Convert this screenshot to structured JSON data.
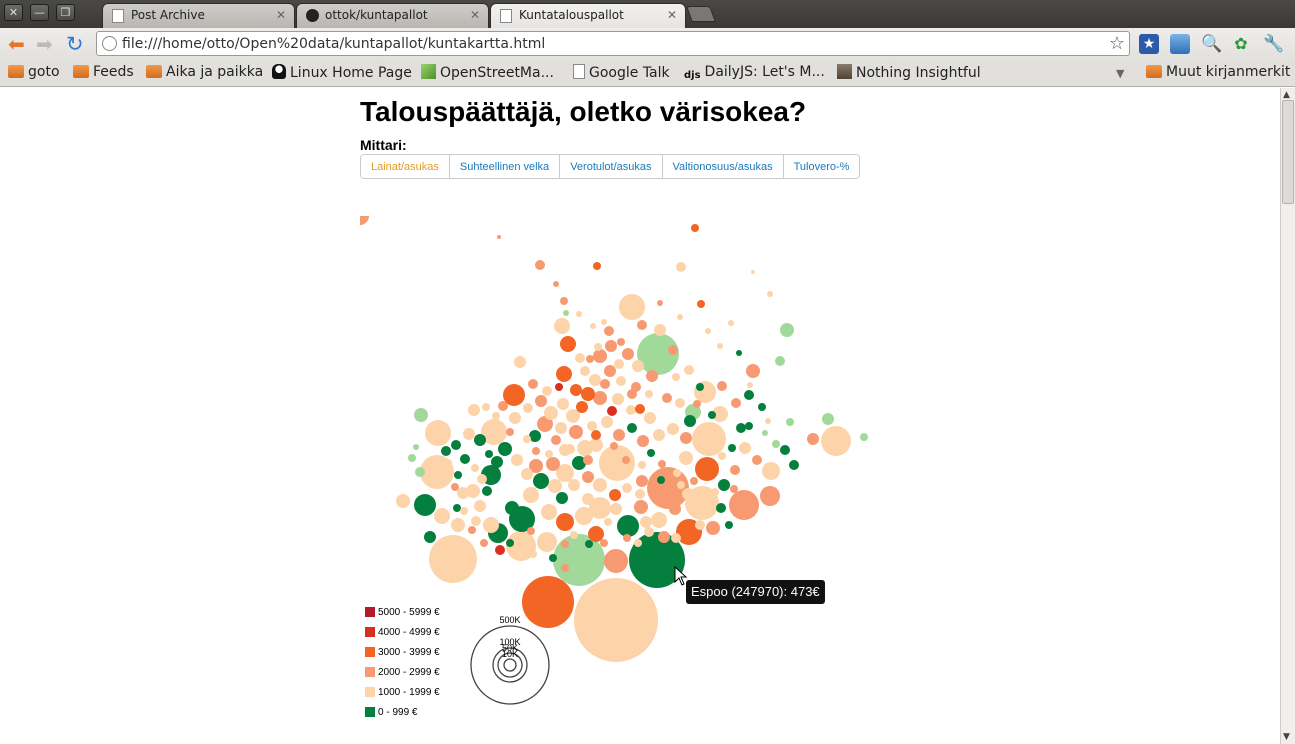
{
  "window": {
    "tabs": [
      {
        "label": "Post Archive",
        "active": false
      },
      {
        "label": "ottok/kuntapallot",
        "active": false
      },
      {
        "label": "Kuntatalouspallot",
        "active": true
      }
    ]
  },
  "toolbar": {
    "url": "file:///home/otto/Open%20data/kuntapallot/kuntakartta.html"
  },
  "bookmarks": {
    "items": [
      {
        "label": "goto",
        "icon": "folder-icon"
      },
      {
        "label": "Feeds",
        "icon": "folder-icon"
      },
      {
        "label": "Aika ja paikka",
        "icon": "folder-icon"
      },
      {
        "label": "Linux Home Page",
        "icon": "tux-icon"
      },
      {
        "label": "OpenStreetMa...",
        "icon": "map-icon"
      },
      {
        "label": "Google Talk",
        "icon": "page-icon"
      },
      {
        "label": "DailyJS: Let's M...",
        "icon": "djs-icon"
      },
      {
        "label": "Nothing Insightful",
        "icon": "image-icon"
      }
    ],
    "other": "Muut kirjanmerkit"
  },
  "page": {
    "title": "Talouspäättäjä, oletko värisokea?",
    "metric_label": "Mittari:",
    "metrics": [
      {
        "label": "Lainat/asukas",
        "active": true
      },
      {
        "label": "Suhteellinen velka",
        "active": false
      },
      {
        "label": "Verotulot/asukas",
        "active": false
      },
      {
        "label": "Valtionosuus/asukas",
        "active": false
      },
      {
        "label": "Tulovero-%",
        "active": false
      }
    ],
    "legend": [
      {
        "label": "5000 - 5999 €",
        "color": "#b31b2a"
      },
      {
        "label": "4000 - 4999 €",
        "color": "#d7301f"
      },
      {
        "label": "3000 - 3999 €",
        "color": "#f26524"
      },
      {
        "label": "2000 - 2999 €",
        "color": "#f79a72"
      },
      {
        "label": "1000 - 1999 €",
        "color": "#fdd4aa"
      },
      {
        "label": "0 - 999 €",
        "color": "#047f3d"
      }
    ],
    "size_legend": [
      "500K",
      "100K",
      "50K",
      "10K"
    ],
    "tooltip": "Espoo (247970): 473€"
  }
}
